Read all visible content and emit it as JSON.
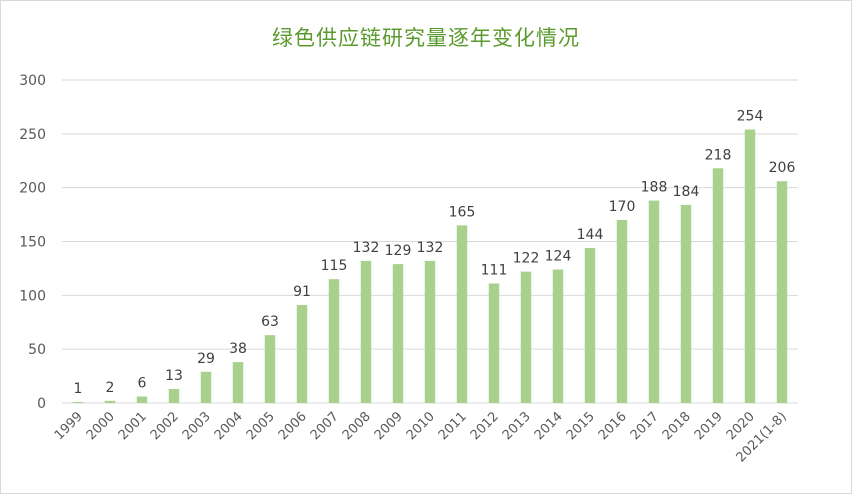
{
  "chart_data": {
    "type": "bar",
    "title": "绿色供应链研究量逐年变化情况",
    "xlabel": "",
    "ylabel": "",
    "categories": [
      "1999",
      "2000",
      "2001",
      "2002",
      "2003",
      "2004",
      "2005",
      "2006",
      "2007",
      "2008",
      "2009",
      "2010",
      "2011",
      "2012",
      "2013",
      "2014",
      "2015",
      "2016",
      "2017",
      "2018",
      "2019",
      "2020",
      "2021(1-8)"
    ],
    "values": [
      1,
      2,
      6,
      13,
      29,
      38,
      63,
      91,
      115,
      132,
      129,
      132,
      165,
      111,
      122,
      124,
      144,
      170,
      188,
      184,
      218,
      254,
      206
    ],
    "ylim": [
      0,
      300
    ],
    "yticks": [
      0,
      50,
      100,
      150,
      200,
      250,
      300
    ],
    "grid": true,
    "legend": "none",
    "bar_color": "#a9d18e",
    "title_color": "#5b9a2e",
    "grid_color": "#d9d9d9",
    "label_color": "#404040",
    "tick_color": "#595959"
  }
}
